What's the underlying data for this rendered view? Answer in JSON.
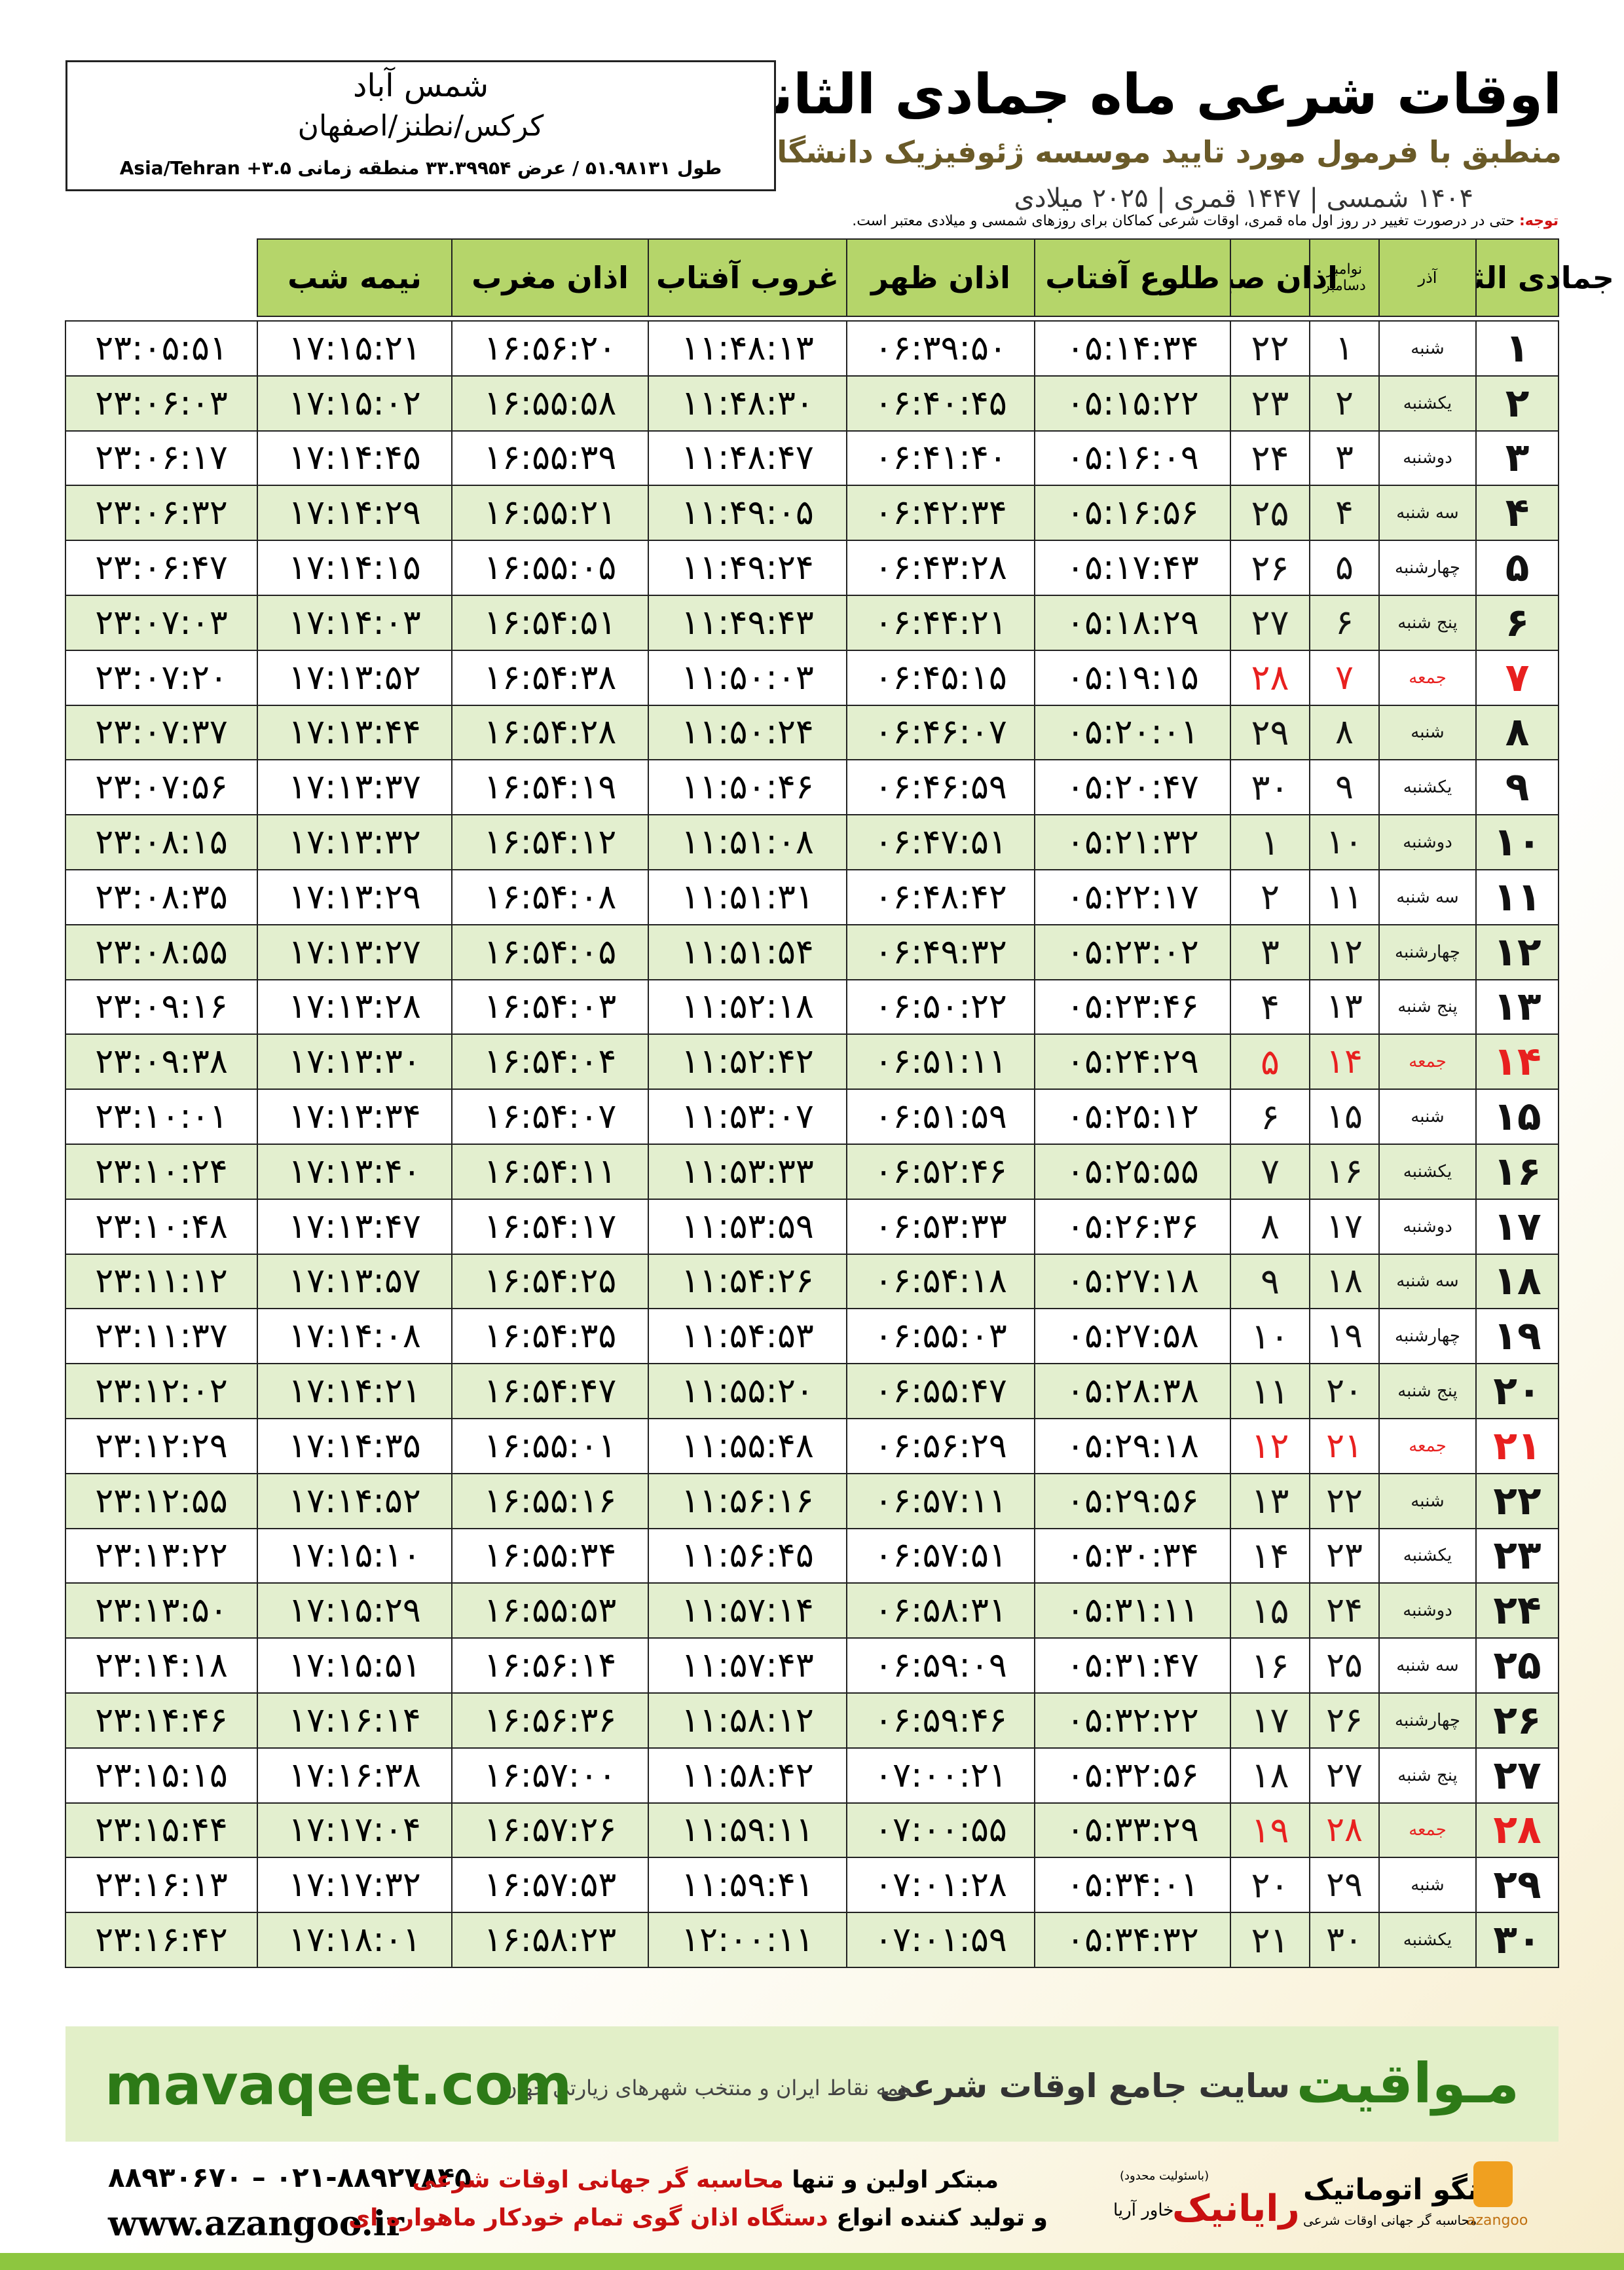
{
  "header": {
    "title": "اوقات شرعی ماه جمادی الثانی",
    "subtitle": "منطبق با فرمول مورد تایید موسسه ژئوفیزیک دانشگاه تهران",
    "dates": "۱۴۰۴ شمسی | ۱۴۴۷ قمری | ۲۰۲۵ میلادی"
  },
  "location": {
    "city": "شمس آباد",
    "region": "کرکس/نطنز/اصفهان",
    "coords": "طول ۵۱.۹۸۱۳۱ / عرض ۳۳.۳۹۹۵۴ منطقه زمانی ۳.۵+ Asia/Tehran"
  },
  "note": {
    "label": "توجه:",
    "text": "حتی در درصورت تغییر در روز اول ماه قمری، اوقات شرعی کماکان برای روزهای شمسی و میلادی معتبر است."
  },
  "table": {
    "holiday_color": "#e8201f",
    "headers": [
      "جمادی الثانی",
      "آذر",
      [
        "نوامبر",
        "دسامبر"
      ],
      "اذان صبح",
      "طلوع آفتاب",
      "اذان ظهر",
      "غروب آفتاب",
      "اذان مغرب",
      "نیمه شب"
    ],
    "rows": [
      {
        "day": "۱",
        "weekday": "شنبه",
        "azar": "۱",
        "greg": "۲۲",
        "times": [
          "۰۵:۱۴:۳۴",
          "۰۶:۳۹:۵۰",
          "۱۱:۴۸:۱۳",
          "۱۶:۵۶:۲۰",
          "۱۷:۱۵:۲۱",
          "۲۳:۰۵:۵۱"
        ]
      },
      {
        "day": "۲",
        "weekday": "یکشنبه",
        "azar": "۲",
        "greg": "۲۳",
        "times": [
          "۰۵:۱۵:۲۲",
          "۰۶:۴۰:۴۵",
          "۱۱:۴۸:۳۰",
          "۱۶:۵۵:۵۸",
          "۱۷:۱۵:۰۲",
          "۲۳:۰۶:۰۳"
        ]
      },
      {
        "day": "۳",
        "weekday": "دوشنبه",
        "azar": "۳",
        "greg": "۲۴",
        "times": [
          "۰۵:۱۶:۰۹",
          "۰۶:۴۱:۴۰",
          "۱۱:۴۸:۴۷",
          "۱۶:۵۵:۳۹",
          "۱۷:۱۴:۴۵",
          "۲۳:۰۶:۱۷"
        ]
      },
      {
        "day": "۴",
        "weekday": "سه شنبه",
        "azar": "۴",
        "greg": "۲۵",
        "times": [
          "۰۵:۱۶:۵۶",
          "۰۶:۴۲:۳۴",
          "۱۱:۴۹:۰۵",
          "۱۶:۵۵:۲۱",
          "۱۷:۱۴:۲۹",
          "۲۳:۰۶:۳۲"
        ]
      },
      {
        "day": "۵",
        "weekday": "چهارشنبه",
        "azar": "۵",
        "greg": "۲۶",
        "times": [
          "۰۵:۱۷:۴۳",
          "۰۶:۴۳:۲۸",
          "۱۱:۴۹:۲۴",
          "۱۶:۵۵:۰۵",
          "۱۷:۱۴:۱۵",
          "۲۳:۰۶:۴۷"
        ]
      },
      {
        "day": "۶",
        "weekday": "پنج شنبه",
        "azar": "۶",
        "greg": "۲۷",
        "times": [
          "۰۵:۱۸:۲۹",
          "۰۶:۴۴:۲۱",
          "۱۱:۴۹:۴۳",
          "۱۶:۵۴:۵۱",
          "۱۷:۱۴:۰۳",
          "۲۳:۰۷:۰۳"
        ]
      },
      {
        "day": "۷",
        "weekday": "جمعه",
        "azar": "۷",
        "greg": "۲۸",
        "holiday": true,
        "times": [
          "۰۵:۱۹:۱۵",
          "۰۶:۴۵:۱۵",
          "۱۱:۵۰:۰۳",
          "۱۶:۵۴:۳۸",
          "۱۷:۱۳:۵۲",
          "۲۳:۰۷:۲۰"
        ]
      },
      {
        "day": "۸",
        "weekday": "شنبه",
        "azar": "۸",
        "greg": "۲۹",
        "times": [
          "۰۵:۲۰:۰۱",
          "۰۶:۴۶:۰۷",
          "۱۱:۵۰:۲۴",
          "۱۶:۵۴:۲۸",
          "۱۷:۱۳:۴۴",
          "۲۳:۰۷:۳۷"
        ]
      },
      {
        "day": "۹",
        "weekday": "یکشنبه",
        "azar": "۹",
        "greg": "۳۰",
        "times": [
          "۰۵:۲۰:۴۷",
          "۰۶:۴۶:۵۹",
          "۱۱:۵۰:۴۶",
          "۱۶:۵۴:۱۹",
          "۱۷:۱۳:۳۷",
          "۲۳:۰۷:۵۶"
        ]
      },
      {
        "day": "۱۰",
        "weekday": "دوشنبه",
        "azar": "۱۰",
        "greg": "۱",
        "times": [
          "۰۵:۲۱:۳۲",
          "۰۶:۴۷:۵۱",
          "۱۱:۵۱:۰۸",
          "۱۶:۵۴:۱۲",
          "۱۷:۱۳:۳۲",
          "۲۳:۰۸:۱۵"
        ]
      },
      {
        "day": "۱۱",
        "weekday": "سه شنبه",
        "azar": "۱۱",
        "greg": "۲",
        "times": [
          "۰۵:۲۲:۱۷",
          "۰۶:۴۸:۴۲",
          "۱۱:۵۱:۳۱",
          "۱۶:۵۴:۰۸",
          "۱۷:۱۳:۲۹",
          "۲۳:۰۸:۳۵"
        ]
      },
      {
        "day": "۱۲",
        "weekday": "چهارشنبه",
        "azar": "۱۲",
        "greg": "۳",
        "times": [
          "۰۵:۲۳:۰۲",
          "۰۶:۴۹:۳۲",
          "۱۱:۵۱:۵۴",
          "۱۶:۵۴:۰۵",
          "۱۷:۱۳:۲۷",
          "۲۳:۰۸:۵۵"
        ]
      },
      {
        "day": "۱۳",
        "weekday": "پنج شنبه",
        "azar": "۱۳",
        "greg": "۴",
        "times": [
          "۰۵:۲۳:۴۶",
          "۰۶:۵۰:۲۲",
          "۱۱:۵۲:۱۸",
          "۱۶:۵۴:۰۳",
          "۱۷:۱۳:۲۸",
          "۲۳:۰۹:۱۶"
        ]
      },
      {
        "day": "۱۴",
        "weekday": "جمعه",
        "azar": "۱۴",
        "greg": "۵",
        "holiday": true,
        "times": [
          "۰۵:۲۴:۲۹",
          "۰۶:۵۱:۱۱",
          "۱۱:۵۲:۴۲",
          "۱۶:۵۴:۰۴",
          "۱۷:۱۳:۳۰",
          "۲۳:۰۹:۳۸"
        ]
      },
      {
        "day": "۱۵",
        "weekday": "شنبه",
        "azar": "۱۵",
        "greg": "۶",
        "times": [
          "۰۵:۲۵:۱۲",
          "۰۶:۵۱:۵۹",
          "۱۱:۵۳:۰۷",
          "۱۶:۵۴:۰۷",
          "۱۷:۱۳:۳۴",
          "۲۳:۱۰:۰۱"
        ]
      },
      {
        "day": "۱۶",
        "weekday": "یکشنبه",
        "azar": "۱۶",
        "greg": "۷",
        "times": [
          "۰۵:۲۵:۵۵",
          "۰۶:۵۲:۴۶",
          "۱۱:۵۳:۳۳",
          "۱۶:۵۴:۱۱",
          "۱۷:۱۳:۴۰",
          "۲۳:۱۰:۲۴"
        ]
      },
      {
        "day": "۱۷",
        "weekday": "دوشنبه",
        "azar": "۱۷",
        "greg": "۸",
        "times": [
          "۰۵:۲۶:۳۶",
          "۰۶:۵۳:۳۳",
          "۱۱:۵۳:۵۹",
          "۱۶:۵۴:۱۷",
          "۱۷:۱۳:۴۷",
          "۲۳:۱۰:۴۸"
        ]
      },
      {
        "day": "۱۸",
        "weekday": "سه شنبه",
        "azar": "۱۸",
        "greg": "۹",
        "times": [
          "۰۵:۲۷:۱۸",
          "۰۶:۵۴:۱۸",
          "۱۱:۵۴:۲۶",
          "۱۶:۵۴:۲۵",
          "۱۷:۱۳:۵۷",
          "۲۳:۱۱:۱۲"
        ]
      },
      {
        "day": "۱۹",
        "weekday": "چهارشنبه",
        "azar": "۱۹",
        "greg": "۱۰",
        "times": [
          "۰۵:۲۷:۵۸",
          "۰۶:۵۵:۰۳",
          "۱۱:۵۴:۵۳",
          "۱۶:۵۴:۳۵",
          "۱۷:۱۴:۰۸",
          "۲۳:۱۱:۳۷"
        ]
      },
      {
        "day": "۲۰",
        "weekday": "پنج شنبه",
        "azar": "۲۰",
        "greg": "۱۱",
        "times": [
          "۰۵:۲۸:۳۸",
          "۰۶:۵۵:۴۷",
          "۱۱:۵۵:۲۰",
          "۱۶:۵۴:۴۷",
          "۱۷:۱۴:۲۱",
          "۲۳:۱۲:۰۲"
        ]
      },
      {
        "day": "۲۱",
        "weekday": "جمعه",
        "azar": "۲۱",
        "greg": "۱۲",
        "holiday": true,
        "times": [
          "۰۵:۲۹:۱۸",
          "۰۶:۵۶:۲۹",
          "۱۱:۵۵:۴۸",
          "۱۶:۵۵:۰۱",
          "۱۷:۱۴:۳۵",
          "۲۳:۱۲:۲۹"
        ]
      },
      {
        "day": "۲۲",
        "weekday": "شنبه",
        "azar": "۲۲",
        "greg": "۱۳",
        "times": [
          "۰۵:۲۹:۵۶",
          "۰۶:۵۷:۱۱",
          "۱۱:۵۶:۱۶",
          "۱۶:۵۵:۱۶",
          "۱۷:۱۴:۵۲",
          "۲۳:۱۲:۵۵"
        ]
      },
      {
        "day": "۲۳",
        "weekday": "یکشنبه",
        "azar": "۲۳",
        "greg": "۱۴",
        "times": [
          "۰۵:۳۰:۳۴",
          "۰۶:۵۷:۵۱",
          "۱۱:۵۶:۴۵",
          "۱۶:۵۵:۳۴",
          "۱۷:۱۵:۱۰",
          "۲۳:۱۳:۲۲"
        ]
      },
      {
        "day": "۲۴",
        "weekday": "دوشنبه",
        "azar": "۲۴",
        "greg": "۱۵",
        "times": [
          "۰۵:۳۱:۱۱",
          "۰۶:۵۸:۳۱",
          "۱۱:۵۷:۱۴",
          "۱۶:۵۵:۵۳",
          "۱۷:۱۵:۲۹",
          "۲۳:۱۳:۵۰"
        ]
      },
      {
        "day": "۲۵",
        "weekday": "سه شنبه",
        "azar": "۲۵",
        "greg": "۱۶",
        "times": [
          "۰۵:۳۱:۴۷",
          "۰۶:۵۹:۰۹",
          "۱۱:۵۷:۴۳",
          "۱۶:۵۶:۱۴",
          "۱۷:۱۵:۵۱",
          "۲۳:۱۴:۱۸"
        ]
      },
      {
        "day": "۲۶",
        "weekday": "چهارشنبه",
        "azar": "۲۶",
        "greg": "۱۷",
        "times": [
          "۰۵:۳۲:۲۲",
          "۰۶:۵۹:۴۶",
          "۱۱:۵۸:۱۲",
          "۱۶:۵۶:۳۶",
          "۱۷:۱۶:۱۴",
          "۲۳:۱۴:۴۶"
        ]
      },
      {
        "day": "۲۷",
        "weekday": "پنج شنبه",
        "azar": "۲۷",
        "greg": "۱۸",
        "times": [
          "۰۵:۳۲:۵۶",
          "۰۷:۰۰:۲۱",
          "۱۱:۵۸:۴۲",
          "۱۶:۵۷:۰۰",
          "۱۷:۱۶:۳۸",
          "۲۳:۱۵:۱۵"
        ]
      },
      {
        "day": "۲۸",
        "weekday": "جمعه",
        "azar": "۲۸",
        "greg": "۱۹",
        "holiday": true,
        "times": [
          "۰۵:۳۳:۲۹",
          "۰۷:۰۰:۵۵",
          "۱۱:۵۹:۱۱",
          "۱۶:۵۷:۲۶",
          "۱۷:۱۷:۰۴",
          "۲۳:۱۵:۴۴"
        ]
      },
      {
        "day": "۲۹",
        "weekday": "شنبه",
        "azar": "۲۹",
        "greg": "۲۰",
        "times": [
          "۰۵:۳۴:۰۱",
          "۰۷:۰۱:۲۸",
          "۱۱:۵۹:۴۱",
          "۱۶:۵۷:۵۳",
          "۱۷:۱۷:۳۲",
          "۲۳:۱۶:۱۳"
        ]
      },
      {
        "day": "۳۰",
        "weekday": "یکشنبه",
        "azar": "۳۰",
        "greg": "۲۱",
        "times": [
          "۰۵:۳۴:۳۲",
          "۰۷:۰۱:۵۹",
          "۱۲:۰۰:۱۱",
          "۱۶:۵۸:۲۳",
          "۱۷:۱۸:۰۱",
          "۲۳:۱۶:۴۲"
        ]
      }
    ]
  },
  "banner": {
    "brand": "مـواقیت",
    "tagline": "سایت جامع اوقات شرعی",
    "scope": "همه نقاط ایران و منتخب شهرهای زیارتی جهان",
    "site": "mavaqeet.com"
  },
  "footer": {
    "phones": "۰۲۱-۸۸۹۲۷۸۴۵ – ۸۸۹۳۰۶۷۰",
    "web": "www.azangoo.ir",
    "line1": [
      "مبتکر اولین و تنها ",
      "محاسبه گر جهانی اوقات شرعی"
    ],
    "line2": [
      "و تولید کننده انواع ",
      "دستگاه اذان گوی تمام خودکار ماهواره ای"
    ],
    "logo1": "رایانیک",
    "logo1_sub": "خاور آریا",
    "logo1_note": "(باسئولیت محدود)",
    "logo2": "اذانگو اتوماتیک",
    "logo2_sub": "محاسبه گر جهانی اوقات شرعی",
    "logo2_en": "azangoo"
  }
}
